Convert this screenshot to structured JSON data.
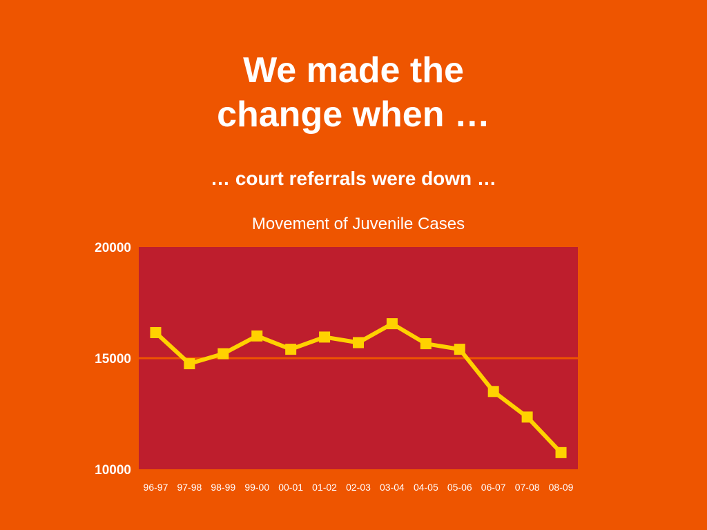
{
  "slide": {
    "title_line1": "We made the",
    "title_line2": "change when …",
    "subtitle": "… court referrals were down …"
  },
  "colors": {
    "background": "#EE5500",
    "plot_area": "#BE1E2D",
    "series_line": "#FFD200",
    "gridline": "#EE5500",
    "text": "#FFFFFF"
  },
  "chart_data": {
    "type": "line",
    "title": "Movement of Juvenile Cases",
    "xlabel": "",
    "ylabel": "",
    "categories": [
      "96-97",
      "97-98",
      "98-99",
      "99-00",
      "00-01",
      "01-02",
      "02-03",
      "03-04",
      "04-05",
      "05-06",
      "06-07",
      "07-08",
      "08-09"
    ],
    "series": [
      {
        "values": [
          16150,
          14750,
          15200,
          16000,
          15400,
          15950,
          15700,
          16550,
          15650,
          15400,
          13500,
          12350,
          10750
        ],
        "marker": "square"
      }
    ],
    "ylim": [
      10000,
      20000
    ],
    "yticks": [
      "10000",
      "15000",
      "20000"
    ],
    "grid": true,
    "legend": "none"
  }
}
